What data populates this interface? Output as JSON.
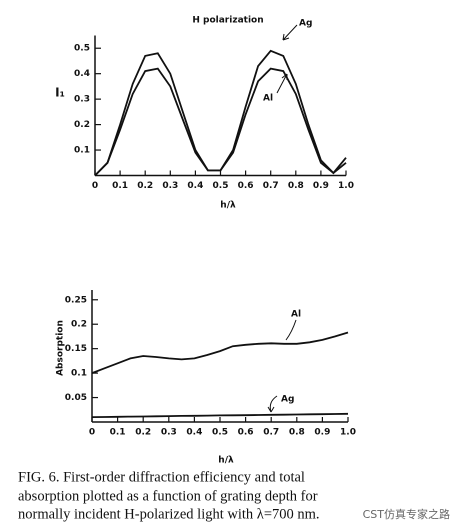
{
  "chart_data": [
    {
      "type": "line",
      "title": "H  polarization",
      "x_label": "h/λ",
      "y_label": "I₁",
      "x": [
        0,
        0.05,
        0.1,
        0.15,
        0.2,
        0.25,
        0.3,
        0.35,
        0.4,
        0.45,
        0.5,
        0.55,
        0.6,
        0.65,
        0.7,
        0.75,
        0.8,
        0.85,
        0.9,
        0.95,
        1.0
      ],
      "series": [
        {
          "name": "Ag",
          "color": "#111111",
          "values": [
            0,
            0.05,
            0.2,
            0.36,
            0.47,
            0.48,
            0.4,
            0.25,
            0.1,
            0.02,
            0.02,
            0.1,
            0.27,
            0.43,
            0.49,
            0.47,
            0.36,
            0.2,
            0.06,
            0.01,
            0.07
          ]
        },
        {
          "name": "Al",
          "color": "#111111",
          "values": [
            0,
            0.05,
            0.18,
            0.32,
            0.41,
            0.42,
            0.35,
            0.22,
            0.09,
            0.02,
            0.02,
            0.09,
            0.24,
            0.37,
            0.42,
            0.41,
            0.32,
            0.18,
            0.05,
            0.01,
            0.05
          ]
        }
      ],
      "xlim": [
        0,
        1.0
      ],
      "ylim": [
        0,
        0.55
      ],
      "xticks": [
        0,
        0.1,
        0.2,
        0.3,
        0.4,
        0.5,
        0.6,
        0.7,
        0.8,
        0.9,
        {
          "value": 1.0,
          "label": "1.0"
        }
      ],
      "yticks": [
        0.1,
        0.2,
        0.3,
        0.4,
        0.5
      ]
    },
    {
      "type": "line",
      "x_label": "h/λ",
      "y_label": "Absorption",
      "x": [
        0,
        0.05,
        0.1,
        0.15,
        0.2,
        0.25,
        0.3,
        0.35,
        0.4,
        0.45,
        0.5,
        0.55,
        0.6,
        0.65,
        0.7,
        0.75,
        0.8,
        0.85,
        0.9,
        0.95,
        1.0
      ],
      "series": [
        {
          "name": "Al",
          "color": "#111111",
          "values": [
            0.1,
            0.11,
            0.12,
            0.13,
            0.135,
            0.133,
            0.13,
            0.128,
            0.13,
            0.137,
            0.145,
            0.155,
            0.158,
            0.16,
            0.161,
            0.16,
            0.16,
            0.163,
            0.168,
            0.175,
            0.183
          ]
        },
        {
          "name": "Ag",
          "color": "#111111",
          "values": [
            0.01,
            0.0103,
            0.0107,
            0.011,
            0.0113,
            0.0117,
            0.012,
            0.0124,
            0.0127,
            0.013,
            0.0134,
            0.0137,
            0.014,
            0.0144,
            0.0147,
            0.015,
            0.0154,
            0.0157,
            0.016,
            0.0164,
            0.0167
          ]
        }
      ],
      "xlim": [
        0,
        1.0
      ],
      "ylim": [
        0,
        0.27
      ],
      "xticks": [
        0,
        0.1,
        0.2,
        0.3,
        0.4,
        0.5,
        0.6,
        0.7,
        0.8,
        0.9,
        {
          "value": 1.0,
          "label": "1.0"
        }
      ],
      "yticks": [
        0.05,
        0.1,
        0.15,
        0.2,
        0.25
      ]
    }
  ],
  "caption": [
    "FIG. 6.  First-order diffraction efficiency and total",
    "absorption plotted as a function of grating depth for",
    "normally incident H-polarized light with λ=700 nm."
  ],
  "watermark": "CST仿真专家之路"
}
